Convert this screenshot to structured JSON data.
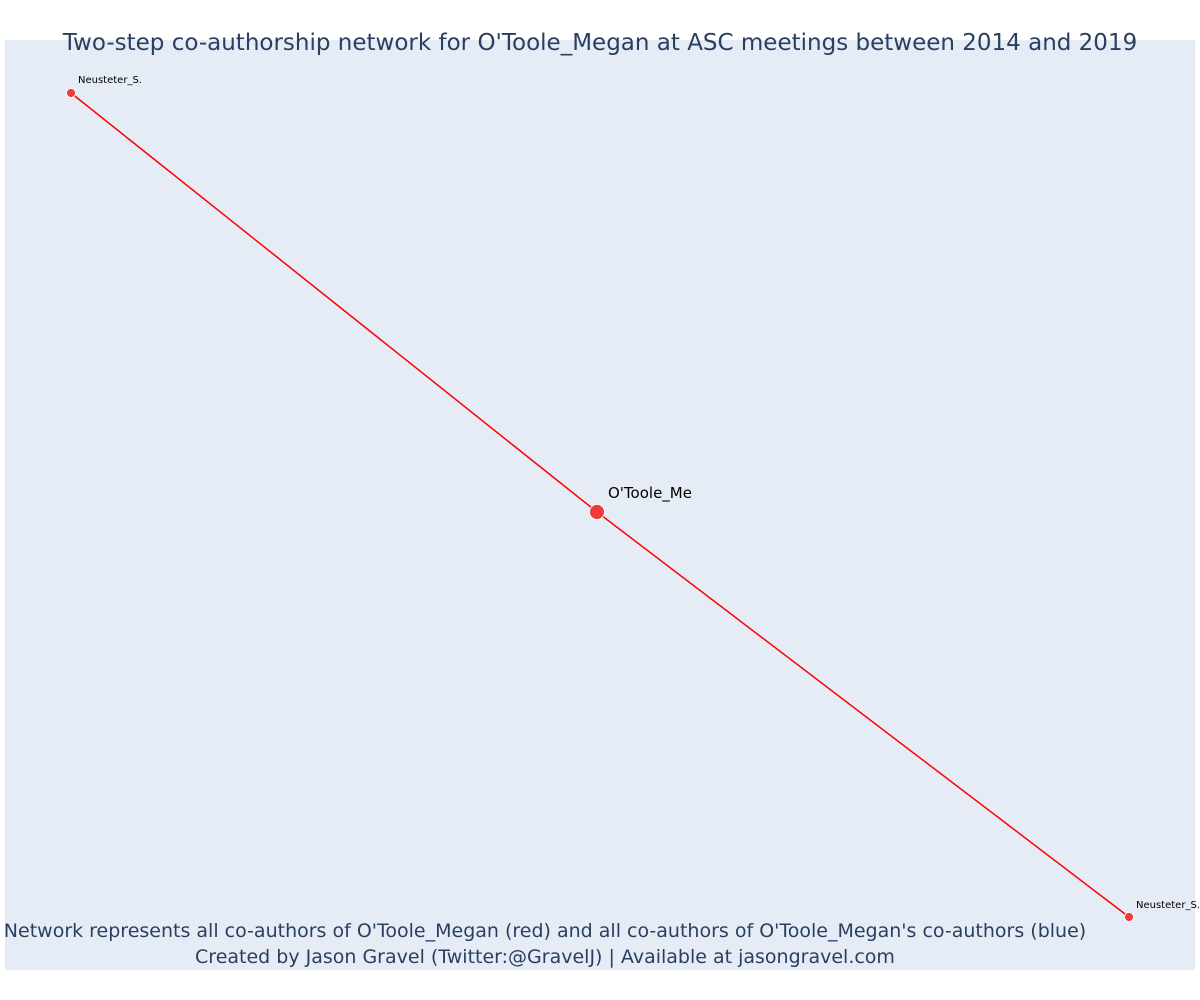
{
  "title": "Two-step co-authorship network for O'Toole_Megan at ASC meetings between 2014 and 2019",
  "caption": {
    "line1": "Network represents all co-authors of O'Toole_Megan (red) and all co-authors of O'Toole_Megan's co-authors (blue)",
    "line2": "Created by Jason Gravel (Twitter:@GravelJ) | Available at jasongravel.com"
  },
  "colors": {
    "plot_background": "#e5ecf6",
    "edge": "#ff0000",
    "node": "#ef3b3b",
    "text": "#2a3f5f"
  },
  "network": {
    "nodes": [
      {
        "id": "neusteter-a",
        "label": "Neusteter_S.",
        "role": "co-author"
      },
      {
        "id": "otoole",
        "label": "O'Toole_Me",
        "role": "focal"
      },
      {
        "id": "neusteter-b",
        "label": "Neusteter_S.",
        "role": "co-author"
      }
    ],
    "edges": [
      {
        "source": "neusteter-a",
        "target": "otoole"
      },
      {
        "source": "otoole",
        "target": "neusteter-b"
      }
    ]
  }
}
